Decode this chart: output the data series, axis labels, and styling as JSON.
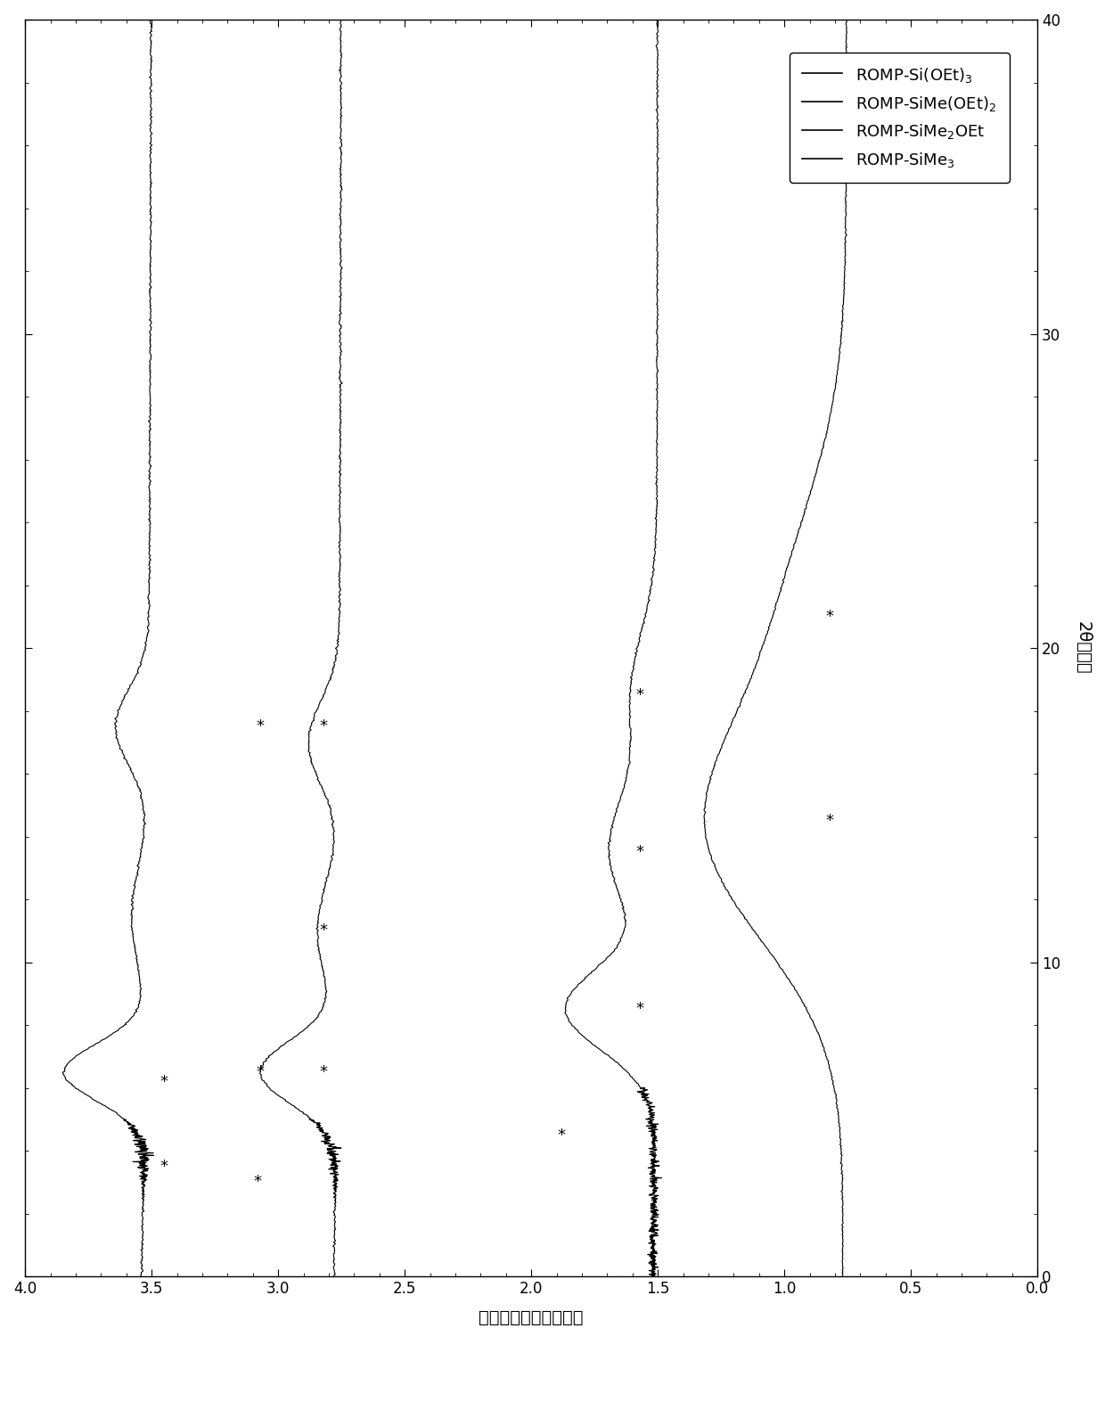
{
  "xlabel": "强度偏移（任意单位）",
  "ylabel": "2θ（度）",
  "xlim": [
    4.0,
    0.0
  ],
  "ylim": [
    0,
    40
  ],
  "x_ticks": [
    4.0,
    3.5,
    3.0,
    2.5,
    2.0,
    1.5,
    1.0,
    0.5,
    0.0
  ],
  "y_ticks": [
    0,
    10,
    20,
    30,
    40
  ],
  "legend_labels": [
    "ROMP-Si(OEt)$_3$",
    "ROMP-SiMe(OEt)$_2$",
    "ROMP-SiMe$_2$OEt",
    "ROMP-SiMe$_3$"
  ],
  "curve_offsets": [
    3.5,
    2.75,
    1.5,
    0.75
  ],
  "line_color": "#000000",
  "line_width": 0.8,
  "figsize": [
    12.4,
    15.82
  ],
  "dpi": 100,
  "stars_curve0": [
    [
      3.07,
      6.5
    ],
    [
      3.07,
      17.5
    ],
    [
      3.45,
      6.2
    ],
    [
      3.45,
      3.5
    ]
  ],
  "stars_curve1": [
    [
      2.82,
      6.5
    ],
    [
      2.82,
      17.5
    ],
    [
      2.82,
      11.0
    ],
    [
      3.08,
      3.0
    ]
  ],
  "stars_curve2": [
    [
      1.57,
      8.5
    ],
    [
      1.57,
      18.5
    ],
    [
      1.57,
      13.5
    ],
    [
      1.88,
      4.5
    ]
  ],
  "stars_curve3": [
    [
      0.82,
      14.5
    ],
    [
      0.82,
      21.0
    ]
  ]
}
